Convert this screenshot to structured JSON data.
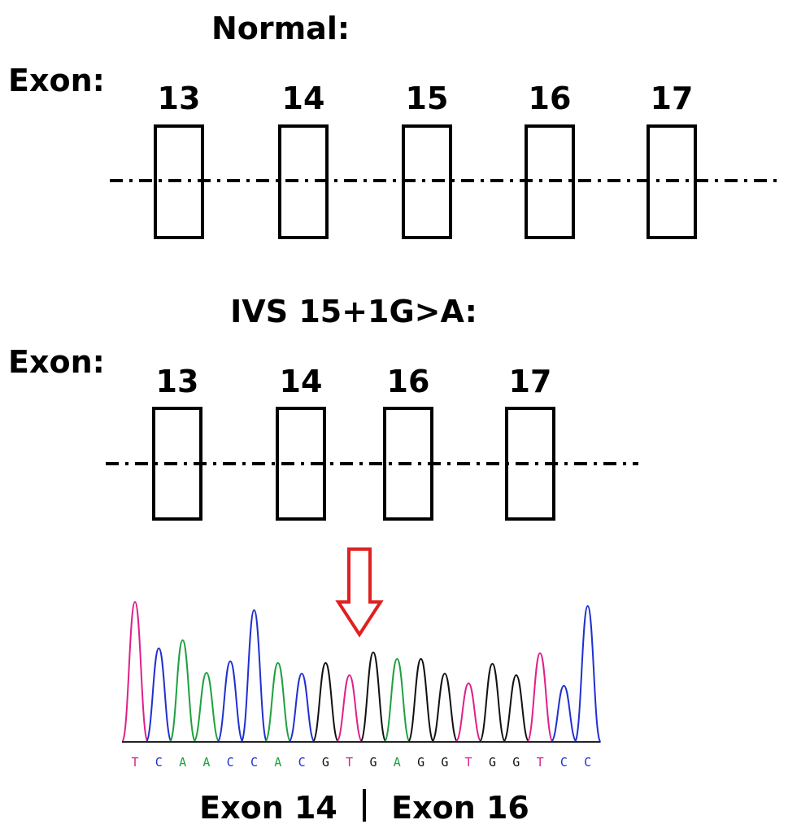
{
  "normal": {
    "title": "Normal:",
    "exon_label": "Exon:",
    "exons": [
      "13",
      "14",
      "15",
      "16",
      "17"
    ]
  },
  "mutant": {
    "title": "IVS 15+1G>A:",
    "exon_label": "Exon:",
    "exons": [
      "13",
      "14",
      "16",
      "17"
    ]
  },
  "sequence": [
    "T",
    "C",
    "A",
    "A",
    "C",
    "C",
    "A",
    "C",
    "G",
    "T",
    "G",
    "A",
    "G",
    "G",
    "T",
    "G",
    "G",
    "T",
    "C",
    "C"
  ],
  "junction": {
    "left": "Exon 14",
    "right": "Exon 16"
  }
}
